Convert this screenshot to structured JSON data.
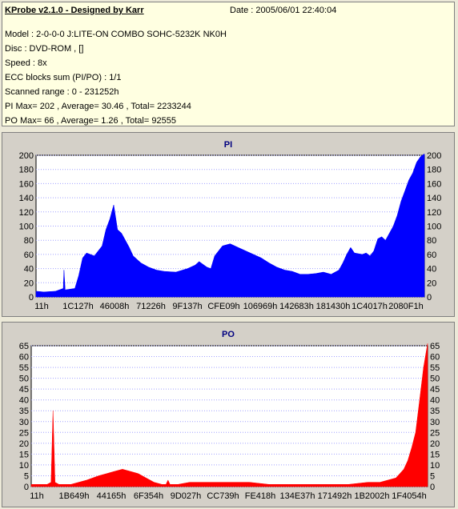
{
  "header": {
    "app_title": "KProbe v2.1.0 - Designed by Karr",
    "date": "Date : 2005/06/01 22:40:04",
    "lines": [
      "Model : 2-0-0-0 J:LITE-ON COMBO SOHC-5232K NK0H",
      "Disc : DVD-ROM ,  []",
      "Speed : 8x",
      "ECC blocks sum (PI/PO) : 1/1",
      "Scanned range : 0 - 231252h",
      "PI Max= 202 , Average= 30.46 , Total= 2233244",
      "PO Max= 66 , Average= 1.26 , Total= 92555"
    ]
  },
  "colors": {
    "pi_fill": "#0000ff",
    "po_fill": "#ff0000",
    "plot_bg": "#ffffff",
    "grid": "#a0a0ff",
    "title": "#000080"
  },
  "chart_data": [
    {
      "type": "area",
      "title": "PI",
      "ylim": [
        0,
        200
      ],
      "yticks": [
        0,
        20,
        40,
        60,
        80,
        100,
        120,
        140,
        160,
        180,
        200
      ],
      "xticks": [
        "11h",
        "1C127h",
        "46008h",
        "71226h",
        "9F137h",
        "CFE09h",
        "106969h",
        "142683h",
        "181430h",
        "1C4017h",
        "2080F1h"
      ],
      "series": [
        {
          "color": "#0000ff",
          "x_fraction": [
            0,
            0.02,
            0.05,
            0.07,
            0.072,
            0.075,
            0.1,
            0.11,
            0.12,
            0.13,
            0.15,
            0.17,
            0.18,
            0.19,
            0.2,
            0.21,
            0.22,
            0.23,
            0.24,
            0.25,
            0.27,
            0.29,
            0.31,
            0.33,
            0.36,
            0.39,
            0.41,
            0.42,
            0.44,
            0.45,
            0.46,
            0.48,
            0.5,
            0.52,
            0.54,
            0.56,
            0.58,
            0.6,
            0.62,
            0.64,
            0.66,
            0.68,
            0.7,
            0.72,
            0.74,
            0.76,
            0.78,
            0.79,
            0.8,
            0.81,
            0.82,
            0.84,
            0.85,
            0.86,
            0.87,
            0.88,
            0.89,
            0.9,
            0.91,
            0.92,
            0.93,
            0.94,
            0.95,
            0.96,
            0.97,
            0.98,
            0.99,
            1
          ],
          "values": [
            8,
            7,
            8,
            12,
            38,
            10,
            12,
            30,
            55,
            62,
            58,
            72,
            95,
            110,
            130,
            95,
            90,
            80,
            70,
            58,
            48,
            42,
            38,
            36,
            35,
            40,
            45,
            50,
            42,
            40,
            58,
            72,
            75,
            70,
            65,
            60,
            55,
            48,
            42,
            38,
            36,
            32,
            32,
            33,
            35,
            32,
            38,
            48,
            60,
            70,
            62,
            60,
            62,
            58,
            65,
            82,
            85,
            80,
            90,
            100,
            115,
            135,
            150,
            165,
            175,
            190,
            198,
            202
          ]
        }
      ]
    },
    {
      "type": "area",
      "title": "PO",
      "ylim": [
        0,
        65
      ],
      "yticks": [
        0,
        5,
        10,
        15,
        20,
        25,
        30,
        35,
        40,
        45,
        50,
        55,
        60,
        65
      ],
      "xticks": [
        "11h",
        "1B649h",
        "44165h",
        "6F354h",
        "9D027h",
        "CC739h",
        "FE418h",
        "134E37h",
        "171492h",
        "1B2002h",
        "1F4054h"
      ],
      "series": [
        {
          "color": "#ff0000",
          "x_fraction": [
            0,
            0.04,
            0.05,
            0.055,
            0.06,
            0.07,
            0.1,
            0.14,
            0.17,
            0.19,
            0.21,
            0.23,
            0.25,
            0.27,
            0.29,
            0.31,
            0.33,
            0.34,
            0.345,
            0.35,
            0.37,
            0.4,
            0.45,
            0.5,
            0.55,
            0.6,
            0.65,
            0.7,
            0.75,
            0.8,
            0.85,
            0.88,
            0.9,
            0.92,
            0.93,
            0.94,
            0.95,
            0.96,
            0.97,
            0.98,
            0.99,
            1
          ],
          "values": [
            1,
            1,
            2,
            35,
            2,
            1,
            1,
            3,
            5,
            6,
            7,
            8,
            7,
            6,
            4,
            2,
            1,
            1,
            3,
            1,
            1,
            2,
            2,
            2,
            2,
            1,
            1,
            1,
            1,
            1,
            2,
            2,
            3,
            4,
            6,
            8,
            12,
            18,
            25,
            40,
            55,
            66
          ]
        }
      ]
    }
  ]
}
